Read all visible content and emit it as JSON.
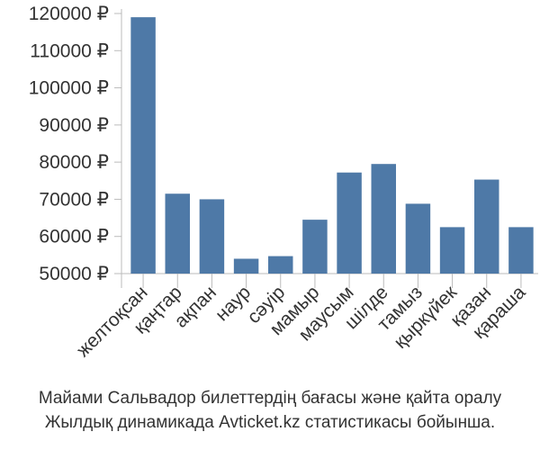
{
  "chart_data": {
    "type": "bar",
    "categories": [
      "желтоқсан",
      "қаңтар",
      "ақпан",
      "наур",
      "сәуір",
      "мамыр",
      "маусым",
      "шілде",
      "тамыз",
      "қыркүйек",
      "қазан",
      "қараша"
    ],
    "values": [
      119000,
      71500,
      70000,
      54000,
      54700,
      64500,
      77200,
      79500,
      68800,
      62500,
      75300,
      62500
    ],
    "ylim": [
      50000,
      120000
    ],
    "yticks": [
      50000,
      60000,
      70000,
      80000,
      90000,
      100000,
      110000,
      120000
    ],
    "tick_suffix": " ₽",
    "bar_color": "#4e79a7",
    "grid": false
  },
  "caption": {
    "line1": "Майами Сальвадор билеттердің бағасы және қайта оралу",
    "line2": "Жылдық динамикада Avticket.kz статистикасы бойынша."
  }
}
